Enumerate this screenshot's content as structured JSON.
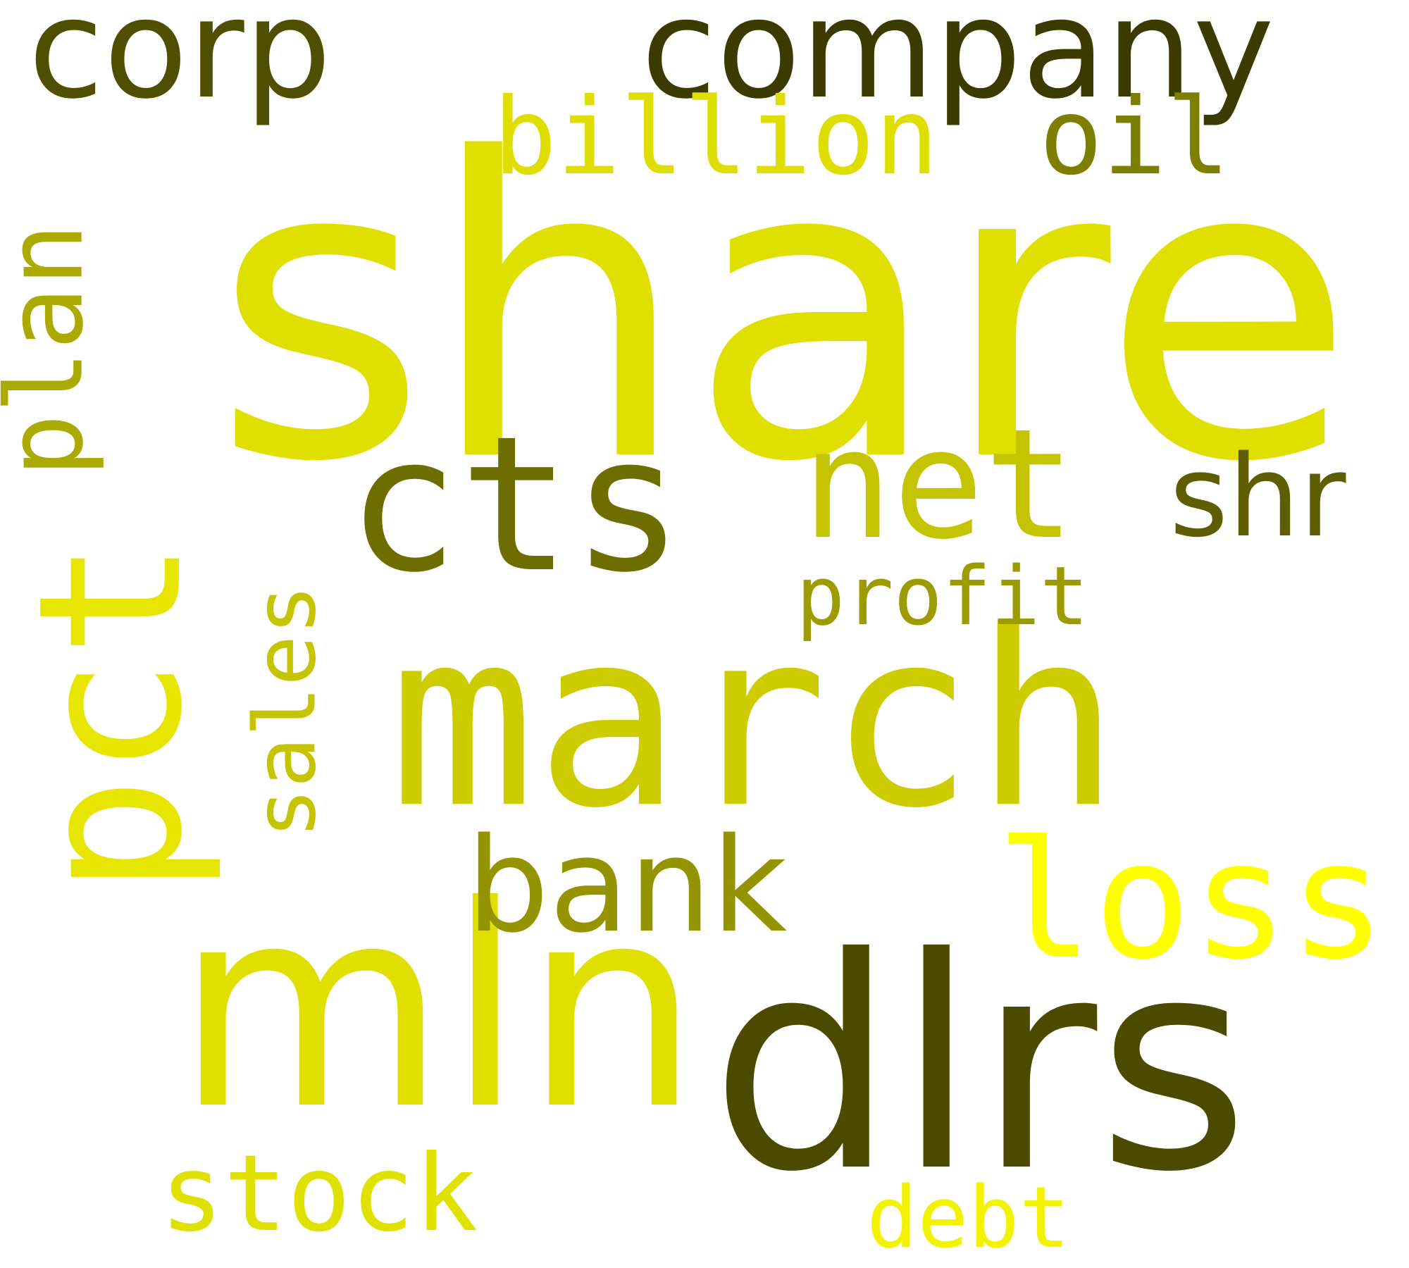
{
  "words": [
    {
      "key": "share",
      "text": "share",
      "color": "#dfdf00"
    },
    {
      "key": "dlrs",
      "text": "dlrs",
      "color": "#4b4b00"
    },
    {
      "key": "mln",
      "text": "mln",
      "color": "#dfdf00"
    },
    {
      "key": "march",
      "text": "march",
      "color": "#cccc00"
    },
    {
      "key": "cts",
      "text": "cts",
      "color": "#6e6e00"
    },
    {
      "key": "net",
      "text": "net",
      "color": "#c4c400"
    },
    {
      "key": "company",
      "text": "company",
      "color": "#3b3b00"
    },
    {
      "key": "corp",
      "text": "corp",
      "color": "#4f4f00"
    },
    {
      "key": "loss",
      "text": "loss",
      "color": "#ffff00"
    },
    {
      "key": "shr",
      "text": "shr",
      "color": "#5e5e00"
    },
    {
      "key": "bank",
      "text": "bank",
      "color": "#949400"
    },
    {
      "key": "stock",
      "text": "stock",
      "color": "#e1e100"
    },
    {
      "key": "oil",
      "text": "oil",
      "color": "#7e7e00"
    },
    {
      "key": "billion",
      "text": "billion",
      "color": "#dede00"
    },
    {
      "key": "profit",
      "text": "profit",
      "color": "#9c9c00"
    },
    {
      "key": "debt",
      "text": "debt",
      "color": "#f3f300"
    },
    {
      "key": "pct",
      "text": "pct",
      "color": "#e6e600"
    },
    {
      "key": "plan",
      "text": "plan",
      "color": "#aaaa00"
    },
    {
      "key": "sales",
      "text": "sales",
      "color": "#c4c400"
    }
  ]
}
